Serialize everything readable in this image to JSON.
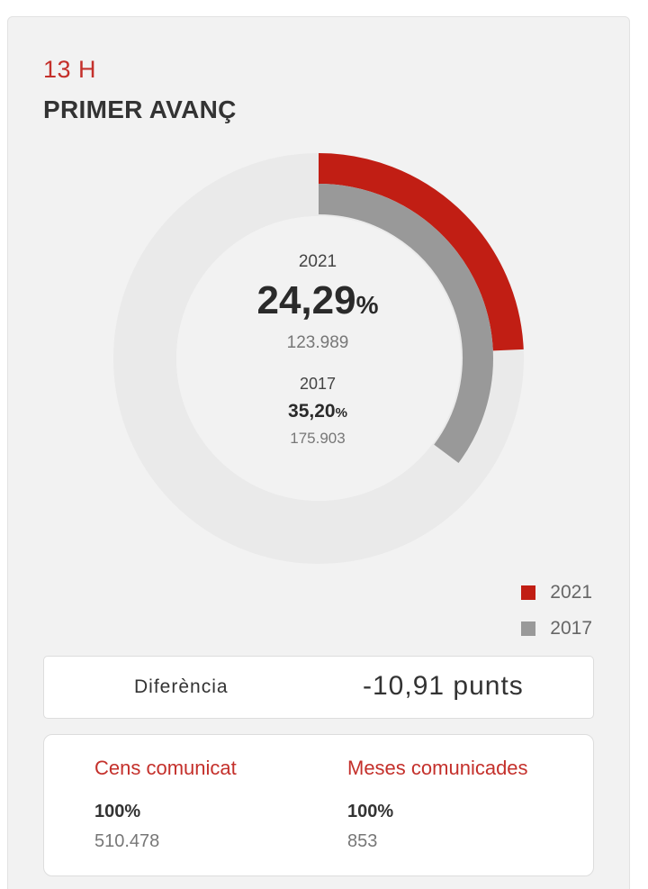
{
  "header": {
    "time": "13 H",
    "title": "PRIMER AVANÇ"
  },
  "chart_data": {
    "type": "donut",
    "series": [
      {
        "name": "2021",
        "percent": 24.29,
        "color": "#c11e14",
        "percent_label": "24,29",
        "count": "123.989"
      },
      {
        "name": "2017",
        "percent": 35.2,
        "color": "#999999",
        "percent_label": "35,20",
        "count": "175.903"
      }
    ],
    "percent_suffix": "%",
    "legend": [
      {
        "label": "2021",
        "color": "#c11e14"
      },
      {
        "label": "2017",
        "color": "#999999"
      }
    ],
    "legend_position": "bottom-right",
    "track_color": "#eaeaea"
  },
  "difference": {
    "label": "Diferència",
    "value": "-10,91 punts"
  },
  "stats": {
    "census": {
      "title": "Cens comunicat",
      "percent": "100%",
      "count": "510.478"
    },
    "tables": {
      "title": "Meses comunicades",
      "percent": "100%",
      "count": "853"
    }
  }
}
